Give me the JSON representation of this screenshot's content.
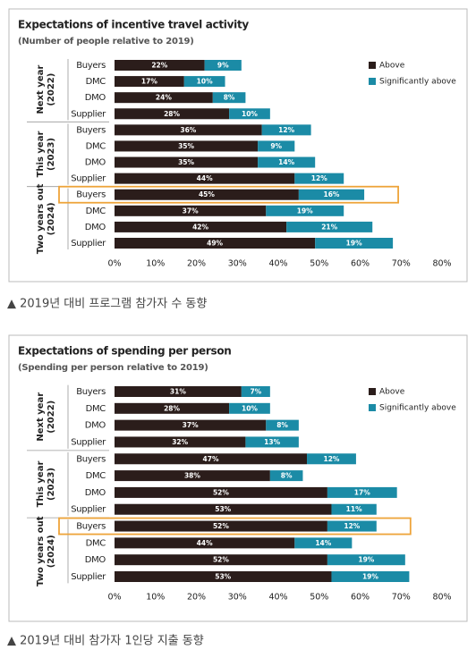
{
  "chart_data": [
    {
      "type": "bar",
      "title": "Expectations of incentive travel activity",
      "subtitle": "(Number of people relative to 2019)",
      "categories": [
        "Buyers",
        "DMC",
        "DMO",
        "Supplier",
        "Buyers",
        "DMC",
        "DMO",
        "Supplier",
        "Buyers",
        "DMC",
        "DMO",
        "Supplier"
      ],
      "groups": [
        [
          "Next year",
          "(2022)"
        ],
        [
          "This year",
          "(2023)"
        ],
        [
          "Two years out",
          "(2024)"
        ]
      ],
      "series": [
        {
          "name": "Above",
          "color": "#2b1d1b",
          "values": [
            22,
            17,
            24,
            28,
            36,
            35,
            35,
            44,
            45,
            37,
            42,
            49
          ],
          "value_labels": [
            "22%",
            "17%",
            "24%",
            "28%",
            "36%",
            "35%",
            "35%",
            "44%",
            "45%",
            "37%",
            "42%",
            "49%"
          ]
        },
        {
          "name": "Significantly above",
          "color": "#1b8ba6",
          "values": [
            9,
            10,
            8,
            10,
            12,
            9,
            14,
            12,
            16,
            19,
            21,
            19
          ],
          "value_labels": [
            "9%",
            "10%",
            "8%",
            "10%",
            "12%",
            "9%",
            "14%",
            "12%",
            "16%",
            "19%",
            "21%",
            "19%"
          ]
        }
      ],
      "xlim": [
        0,
        80
      ],
      "xticks": [
        {
          "value": 0,
          "label": "0%"
        },
        {
          "value": 10,
          "label": "10%"
        },
        {
          "value": 20,
          "label": "20%"
        },
        {
          "value": 30,
          "label": "30%"
        },
        {
          "value": 40,
          "label": "40%"
        },
        {
          "value": 50,
          "label": "50%"
        },
        {
          "value": 60,
          "label": "60%"
        },
        {
          "value": 70,
          "label": "70%"
        },
        {
          "value": 80,
          "label": "80%"
        }
      ],
      "legend": "top-right",
      "stacked": true,
      "highlight": 8,
      "highlight_color": "#eea43a",
      "caption": "▲ 2019년 대비 프로그램 참가자 수 동향"
    },
    {
      "type": "bar",
      "title": "Expectations of spending per person",
      "subtitle": "(Spending per person relative to 2019)",
      "categories": [
        "Buyers",
        "DMC",
        "DMO",
        "Supplier",
        "Buyers",
        "DMC",
        "DMO",
        "Supplier",
        "Buyers",
        "DMC",
        "DMO",
        "Supplier"
      ],
      "groups": [
        [
          "Next year",
          "(2022)"
        ],
        [
          "This year",
          "(2023)"
        ],
        [
          "Two years out",
          "(2024)"
        ]
      ],
      "series": [
        {
          "name": "Above",
          "color": "#2b1d1b",
          "values": [
            31,
            28,
            37,
            32,
            47,
            38,
            52,
            53,
            52,
            44,
            52,
            53
          ],
          "value_labels": [
            "31%",
            "28%",
            "37%",
            "32%",
            "47%",
            "38%",
            "52%",
            "53%",
            "52%",
            "44%",
            "52%",
            "53%"
          ]
        },
        {
          "name": "Significantly above",
          "color": "#1b8ba6",
          "values": [
            7,
            10,
            8,
            13,
            12,
            8,
            17,
            11,
            12,
            14,
            19,
            19
          ],
          "value_labels": [
            "7%",
            "10%",
            "8%",
            "13%",
            "12%",
            "8%",
            "17%",
            "11%",
            "12%",
            "14%",
            "19%",
            "19%"
          ]
        }
      ],
      "xlim": [
        0,
        80
      ],
      "xticks": [
        {
          "value": 0,
          "label": "0%"
        },
        {
          "value": 10,
          "label": "10%"
        },
        {
          "value": 20,
          "label": "20%"
        },
        {
          "value": 30,
          "label": "30%"
        },
        {
          "value": 40,
          "label": "40%"
        },
        {
          "value": 50,
          "label": "50%"
        },
        {
          "value": 60,
          "label": "60%"
        },
        {
          "value": 70,
          "label": "70%"
        },
        {
          "value": 80,
          "label": "80%"
        }
      ],
      "legend": "top-right",
      "stacked": true,
      "highlight": 8,
      "highlight_color": "#eea43a",
      "caption": "▲ 2019년 대비 참가자 1인당 지출 동향"
    }
  ]
}
